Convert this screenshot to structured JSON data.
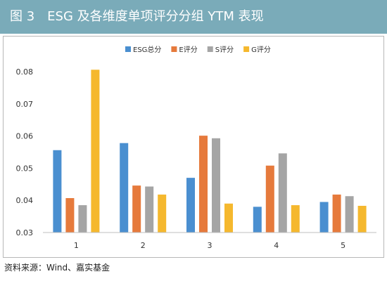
{
  "header": {
    "title": "图 3　ESG 及各维度单项评分分组 YTM 表现"
  },
  "source": {
    "text": "资料来源：Wind、嘉实基金"
  },
  "colors": {
    "header_bg": "#7aabb9",
    "esg": "#4a8fd0",
    "e": "#e67a3c",
    "s": "#a5a5a5",
    "g": "#f5b82e"
  },
  "chart_data": {
    "type": "bar",
    "title": "",
    "xlabel": "",
    "ylabel": "",
    "categories": [
      "1",
      "2",
      "3",
      "4",
      "5"
    ],
    "series": [
      {
        "name": "ESG总分",
        "values": [
          0.0556,
          0.0578,
          0.047,
          0.038,
          0.0395
        ]
      },
      {
        "name": "E评分",
        "values": [
          0.0407,
          0.0446,
          0.0601,
          0.0508,
          0.0418
        ]
      },
      {
        "name": "S评分",
        "values": [
          0.0385,
          0.0443,
          0.0593,
          0.0546,
          0.0413
        ]
      },
      {
        "name": "G评分",
        "values": [
          0.0806,
          0.0418,
          0.039,
          0.0385,
          0.0383
        ]
      }
    ],
    "ylim": [
      0.03,
      0.08
    ],
    "yticks": [
      "0.03",
      "0.04",
      "0.05",
      "0.06",
      "0.07",
      "0.08"
    ],
    "grid": false,
    "legend": "top"
  }
}
